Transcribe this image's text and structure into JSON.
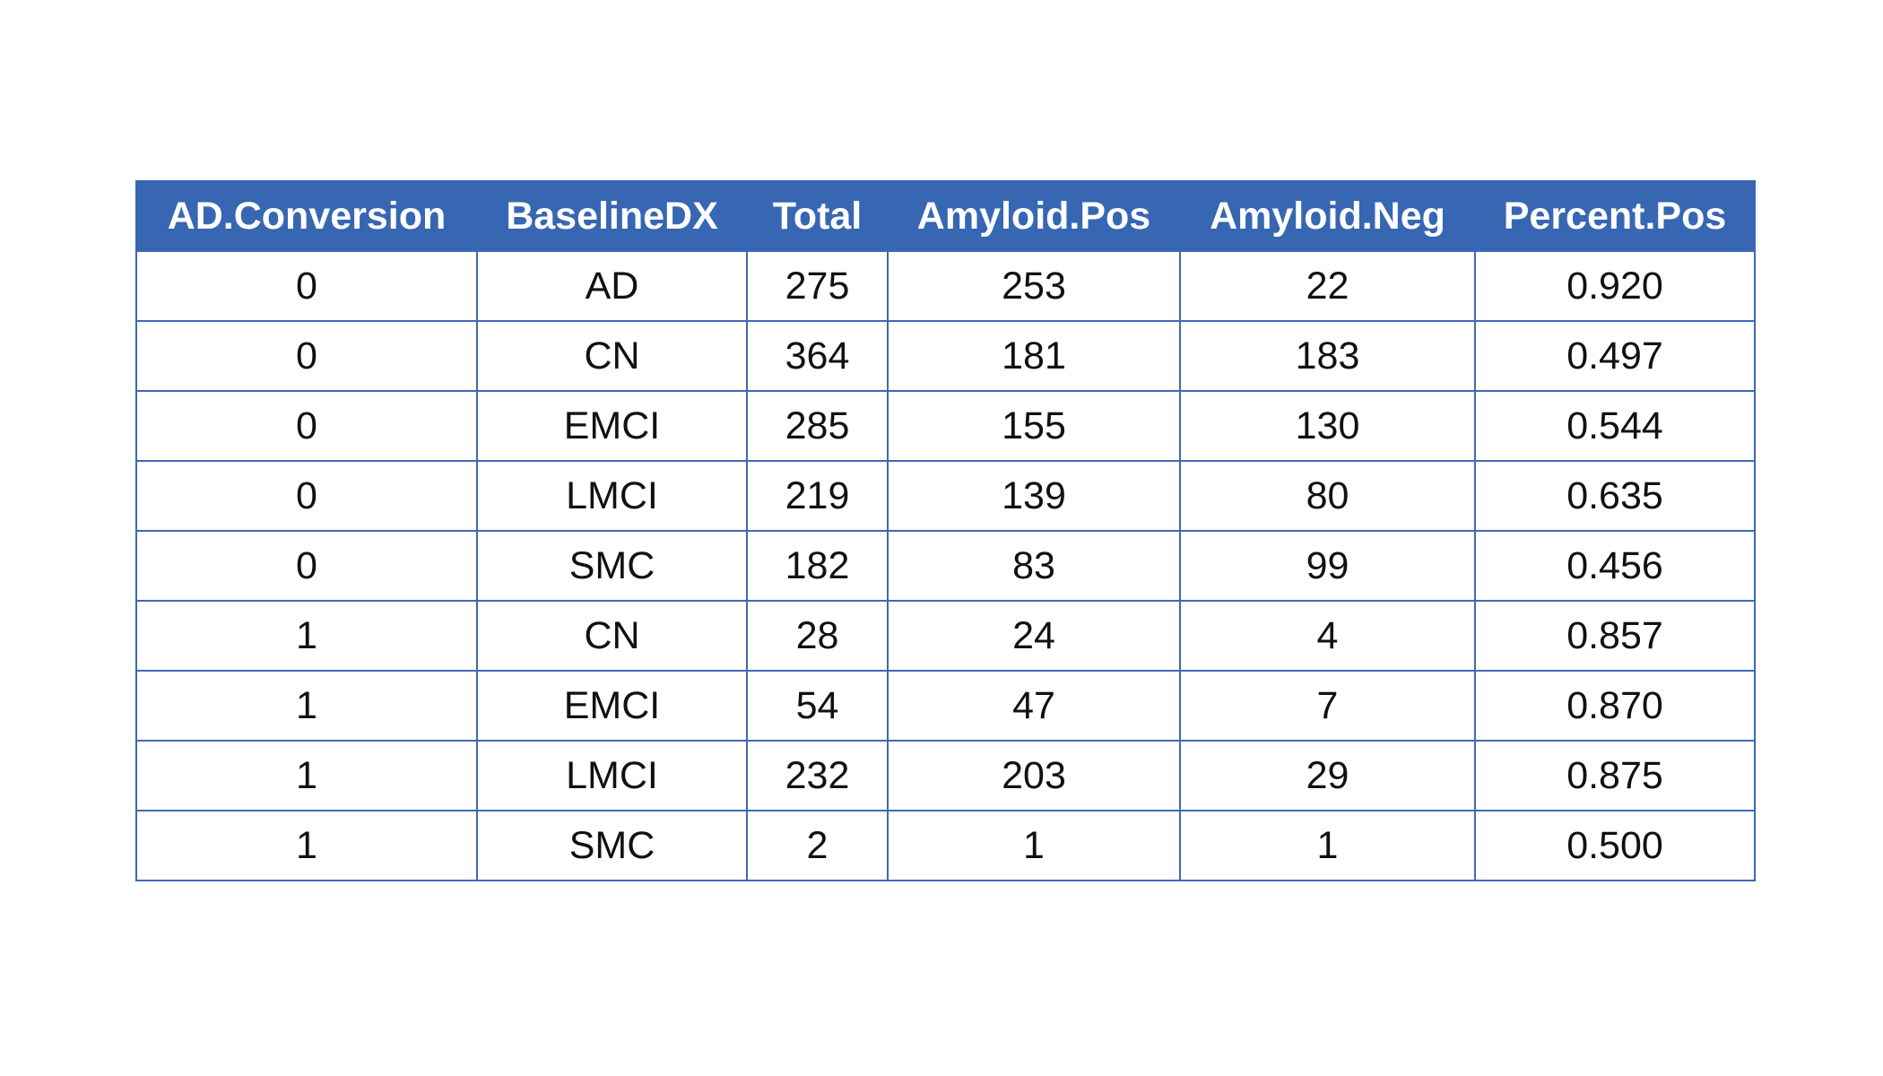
{
  "chart_data": {
    "type": "table",
    "columns": [
      "AD.Conversion",
      "BaselineDX",
      "Total",
      "Amyloid.Pos",
      "Amyloid.Neg",
      "Percent.Pos"
    ],
    "rows": [
      [
        "0",
        "AD",
        "275",
        "253",
        "22",
        "0.920"
      ],
      [
        "0",
        "CN",
        "364",
        "181",
        "183",
        "0.497"
      ],
      [
        "0",
        "EMCI",
        "285",
        "155",
        "130",
        "0.544"
      ],
      [
        "0",
        "LMCI",
        "219",
        "139",
        "80",
        "0.635"
      ],
      [
        "0",
        "SMC",
        "182",
        "83",
        "99",
        "0.456"
      ],
      [
        "1",
        "CN",
        "28",
        "24",
        "4",
        "0.857"
      ],
      [
        "1",
        "EMCI",
        "54",
        "47",
        "7",
        "0.870"
      ],
      [
        "1",
        "LMCI",
        "232",
        "203",
        "29",
        "0.875"
      ],
      [
        "1",
        "SMC",
        "2",
        "1",
        "1",
        "0.500"
      ]
    ],
    "colors": {
      "header_background": "#3766b3",
      "header_text": "#ffffff",
      "border": "#3f69b5"
    }
  }
}
